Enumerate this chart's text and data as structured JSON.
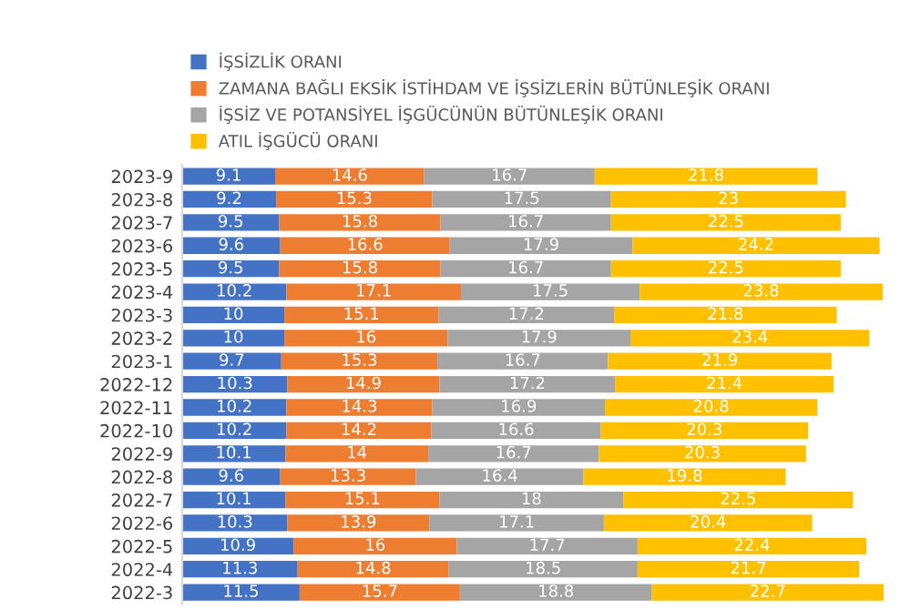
{
  "chart_data": {
    "type": "bar",
    "orientation": "horizontal",
    "stacked": true,
    "data_labels": true,
    "legend": "top",
    "tick_labels": "y",
    "categories": [
      "2023-9",
      "2023-8",
      "2023-7",
      "2023-6",
      "2023-5",
      "2023-4",
      "2023-3",
      "2023-2",
      "2023-1",
      "2022-12",
      "2022-11",
      "2022-10",
      "2022-9",
      "2022-8",
      "2022-7",
      "2022-6",
      "2022-5",
      "2022-4",
      "2022-3"
    ],
    "series": [
      {
        "name": "İŞSİZLİK ORANI",
        "color": "#4472c4",
        "values": [
          9.1,
          9.2,
          9.5,
          9.6,
          9.5,
          10.2,
          10,
          10,
          9.7,
          10.3,
          10.2,
          10.2,
          10.1,
          9.6,
          10.1,
          10.3,
          10.9,
          11.3,
          11.5
        ]
      },
      {
        "name": "ZAMANA BAĞLI EKSİK İSTİHDAM VE İŞSİZLERİN BÜTÜNLEŞİK ORANI",
        "color": "#ed7d31",
        "values": [
          14.6,
          15.3,
          15.8,
          16.6,
          15.8,
          17.1,
          15.1,
          16,
          15.3,
          14.9,
          14.3,
          14.2,
          14,
          13.3,
          15.1,
          13.9,
          16,
          14.8,
          15.7
        ]
      },
      {
        "name": "İŞSİZ VE POTANSİYEL İŞGÜCÜNÜN BÜTÜNLEŞİK ORANI",
        "color": "#a5a5a5",
        "values": [
          16.7,
          17.5,
          16.7,
          17.9,
          16.7,
          17.5,
          17.2,
          17.9,
          16.7,
          17.2,
          16.9,
          16.6,
          16.7,
          16.4,
          18,
          17.1,
          17.7,
          18.5,
          18.8
        ]
      },
      {
        "name": "ATIL İŞGÜCÜ ORANI",
        "color": "#ffc000",
        "values": [
          21.8,
          23,
          22.5,
          24.2,
          22.5,
          23.8,
          21.8,
          23.4,
          21.9,
          21.4,
          20.8,
          20.3,
          20.3,
          19.8,
          22.5,
          20.4,
          22.4,
          21.7,
          22.7
        ]
      }
    ]
  }
}
